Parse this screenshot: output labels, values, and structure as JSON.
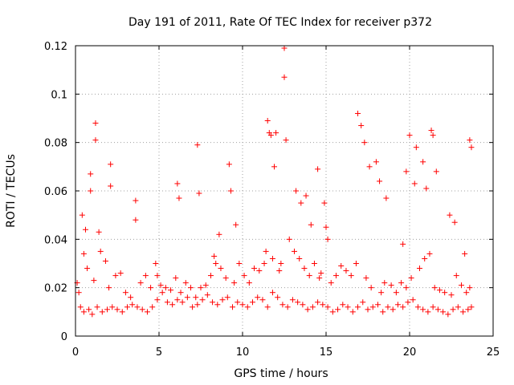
{
  "chart_data": {
    "type": "scatter",
    "title": "Day 191 of 2011, Rate Of TEC Index for receiver p372",
    "xlabel": "GPS time / hours",
    "ylabel": "ROTI / TECUs",
    "xlim": [
      0,
      25
    ],
    "ylim": [
      0,
      0.12
    ],
    "x_ticks": [
      0,
      5,
      10,
      15,
      20,
      25
    ],
    "x_tick_labels": [
      "0",
      "5",
      "10",
      "15",
      "20",
      "25"
    ],
    "y_ticks": [
      0,
      0.02,
      0.04,
      0.06,
      0.08,
      0.1,
      0.12
    ],
    "y_tick_labels": [
      "0",
      "0.02",
      "0.04",
      "0.06",
      "0.08",
      "0.1",
      "0.12"
    ],
    "grid": true,
    "marker": "+",
    "color": "#ff0000",
    "series": [
      {
        "x": [
          0.1,
          0.3,
          0.5,
          0.8,
          1.0,
          1.3,
          1.6,
          1.9,
          2.2,
          2.5,
          2.8,
          3.1,
          3.4,
          3.7,
          4.0,
          4.3,
          4.6,
          4.9,
          5.2,
          5.5,
          5.8,
          6.1,
          6.4,
          6.7,
          7.0,
          7.3,
          7.6,
          7.9,
          8.2,
          8.5,
          8.8,
          9.1,
          9.4,
          9.7,
          10.0,
          10.3,
          10.6,
          10.9,
          11.2,
          11.5,
          11.8,
          12.1,
          12.4,
          12.7,
          13.0,
          13.3,
          13.6,
          13.9,
          14.2,
          14.5,
          14.8,
          15.1,
          15.4,
          15.7,
          16.0,
          16.3,
          16.6,
          16.9,
          17.2,
          17.5,
          17.8,
          18.1,
          18.4,
          18.7,
          19.0,
          19.3,
          19.6,
          19.9,
          20.2,
          20.5,
          20.8,
          21.1,
          21.4,
          21.7,
          22.0,
          22.3,
          22.6,
          22.9,
          23.2,
          23.5,
          23.7,
          0.4,
          0.6,
          0.9,
          0.9,
          1.2,
          1.2,
          1.4,
          2.1,
          2.1,
          3.6,
          3.6,
          4.8,
          4.9,
          6.1,
          6.2,
          7.3,
          7.4,
          8.3,
          8.6,
          9.2,
          9.3,
          9.6,
          11.5,
          11.6,
          11.7,
          11.9,
          12.0,
          12.5,
          12.5,
          12.6,
          13.2,
          13.5,
          13.8,
          14.1,
          14.5,
          14.9,
          15.0,
          15.1,
          16.9,
          17.1,
          17.3,
          17.6,
          18.0,
          18.2,
          18.6,
          19.6,
          19.8,
          20.0,
          20.3,
          20.4,
          20.8,
          21.0,
          21.3,
          21.4,
          21.6,
          22.4,
          22.7,
          23.3,
          23.6,
          23.7,
          0.2,
          0.5,
          0.7,
          1.1,
          1.5,
          1.8,
          2.0,
          2.4,
          2.7,
          3.0,
          3.3,
          3.9,
          4.2,
          4.5,
          5.1,
          5.4,
          5.7,
          6.0,
          6.3,
          6.6,
          6.9,
          7.2,
          7.5,
          7.8,
          8.1,
          8.4,
          8.7,
          9.0,
          9.5,
          9.8,
          10.1,
          10.4,
          10.7,
          11.0,
          11.3,
          11.4,
          11.8,
          12.2,
          12.3,
          12.8,
          13.1,
          13.4,
          13.7,
          14.0,
          14.3,
          14.6,
          14.7,
          15.3,
          15.6,
          15.9,
          16.2,
          16.5,
          16.8,
          17.4,
          17.7,
          18.3,
          18.5,
          18.9,
          19.2,
          19.5,
          19.8,
          20.1,
          20.6,
          20.9,
          21.2,
          21.5,
          21.8,
          22.1,
          22.5,
          22.8,
          23.1,
          23.4,
          23.6
        ],
        "y": [
          0.022,
          0.012,
          0.01,
          0.011,
          0.009,
          0.012,
          0.01,
          0.011,
          0.012,
          0.011,
          0.01,
          0.012,
          0.013,
          0.012,
          0.011,
          0.01,
          0.012,
          0.015,
          0.018,
          0.014,
          0.013,
          0.015,
          0.014,
          0.016,
          0.012,
          0.013,
          0.015,
          0.017,
          0.014,
          0.013,
          0.015,
          0.016,
          0.012,
          0.014,
          0.013,
          0.012,
          0.014,
          0.016,
          0.015,
          0.012,
          0.018,
          0.016,
          0.013,
          0.012,
          0.015,
          0.014,
          0.013,
          0.011,
          0.012,
          0.014,
          0.013,
          0.012,
          0.01,
          0.011,
          0.013,
          0.012,
          0.01,
          0.012,
          0.014,
          0.011,
          0.012,
          0.013,
          0.01,
          0.012,
          0.011,
          0.013,
          0.012,
          0.014,
          0.015,
          0.012,
          0.011,
          0.01,
          0.012,
          0.011,
          0.01,
          0.009,
          0.011,
          0.012,
          0.01,
          0.011,
          0.012,
          0.05,
          0.044,
          0.067,
          0.06,
          0.088,
          0.081,
          0.043,
          0.071,
          0.062,
          0.056,
          0.048,
          0.03,
          0.025,
          0.063,
          0.057,
          0.079,
          0.059,
          0.033,
          0.042,
          0.071,
          0.06,
          0.046,
          0.089,
          0.084,
          0.083,
          0.07,
          0.084,
          0.119,
          0.107,
          0.081,
          0.06,
          0.055,
          0.058,
          0.046,
          0.069,
          0.055,
          0.045,
          0.04,
          0.092,
          0.087,
          0.08,
          0.07,
          0.072,
          0.064,
          0.057,
          0.038,
          0.068,
          0.083,
          0.063,
          0.078,
          0.072,
          0.061,
          0.085,
          0.083,
          0.068,
          0.05,
          0.047,
          0.034,
          0.081,
          0.078,
          0.018,
          0.034,
          0.028,
          0.023,
          0.035,
          0.031,
          0.02,
          0.025,
          0.026,
          0.018,
          0.016,
          0.022,
          0.025,
          0.02,
          0.021,
          0.02,
          0.019,
          0.024,
          0.018,
          0.022,
          0.02,
          0.016,
          0.02,
          0.021,
          0.025,
          0.03,
          0.028,
          0.024,
          0.022,
          0.03,
          0.025,
          0.022,
          0.028,
          0.027,
          0.03,
          0.035,
          0.032,
          0.027,
          0.03,
          0.04,
          0.035,
          0.032,
          0.028,
          0.025,
          0.03,
          0.024,
          0.026,
          0.022,
          0.025,
          0.029,
          0.027,
          0.025,
          0.03,
          0.024,
          0.02,
          0.018,
          0.022,
          0.021,
          0.018,
          0.022,
          0.02,
          0.024,
          0.028,
          0.032,
          0.034,
          0.02,
          0.019,
          0.018,
          0.017,
          0.025,
          0.021,
          0.018,
          0.02
        ]
      }
    ]
  }
}
